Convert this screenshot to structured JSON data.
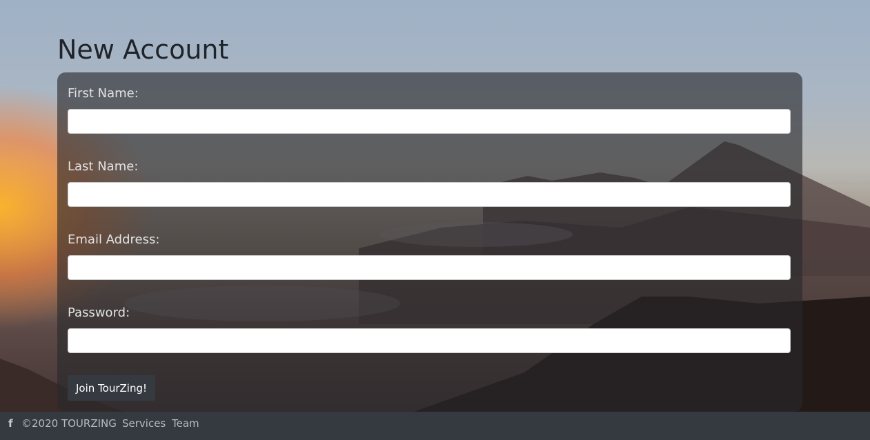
{
  "page": {
    "title": "New Account"
  },
  "form": {
    "fields": [
      {
        "label": "First Name:",
        "value": "",
        "placeholder": ""
      },
      {
        "label": "Last Name:",
        "value": "",
        "placeholder": ""
      },
      {
        "label": "Email Address:",
        "value": "",
        "placeholder": ""
      },
      {
        "label": "Password:",
        "value": "",
        "placeholder": ""
      }
    ],
    "submit_label": "Join TourZing!"
  },
  "footer": {
    "icons": [
      "twitter-icon",
      "facebook-icon"
    ],
    "twitter_glyph": "",
    "facebook_glyph": "f",
    "copyright": "©2020 TOURZING",
    "links": [
      "Services",
      "Team"
    ]
  },
  "colors": {
    "card_bg": "rgba(40,40,44,0.62)",
    "button_bg": "#343a40",
    "footer_bg": "#343a40",
    "title_text": "#1f232a"
  }
}
